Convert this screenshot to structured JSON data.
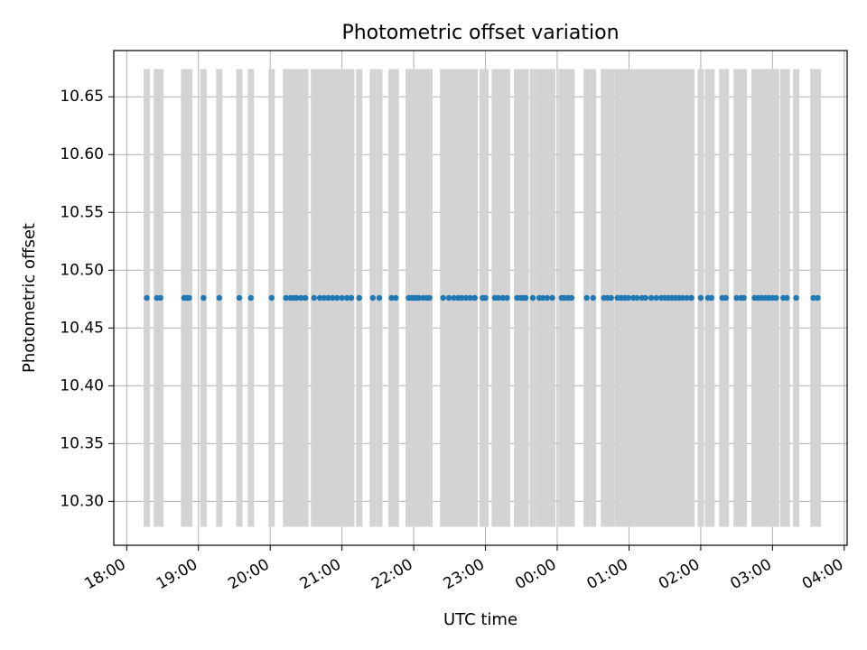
{
  "chart_data": {
    "type": "scatter",
    "title": "Photometric offset variation",
    "xlabel": "UTC time",
    "ylabel": "Photometric offset",
    "grid": true,
    "x_unit": "hours",
    "x_ticks": [
      {
        "t": 18,
        "label": "18:00"
      },
      {
        "t": 19,
        "label": "19:00"
      },
      {
        "t": 20,
        "label": "20:00"
      },
      {
        "t": 21,
        "label": "21:00"
      },
      {
        "t": 22,
        "label": "22:00"
      },
      {
        "t": 23,
        "label": "23:00"
      },
      {
        "t": 24,
        "label": "00:00"
      },
      {
        "t": 25,
        "label": "01:00"
      },
      {
        "t": 26,
        "label": "02:00"
      },
      {
        "t": 27,
        "label": "03:00"
      },
      {
        "t": 28,
        "label": "04:00"
      }
    ],
    "y_ticks": [
      {
        "v": 10.3,
        "label": "10.30"
      },
      {
        "v": 10.35,
        "label": "10.35"
      },
      {
        "v": 10.4,
        "label": "10.40"
      },
      {
        "v": 10.45,
        "label": "10.45"
      },
      {
        "v": 10.5,
        "label": "10.50"
      },
      {
        "v": 10.55,
        "label": "10.55"
      },
      {
        "v": 10.6,
        "label": "10.60"
      },
      {
        "v": 10.65,
        "label": "10.65"
      }
    ],
    "xlim": [
      17.82,
      28.04
    ],
    "ylim": [
      10.262,
      10.69
    ],
    "series": [
      {
        "value": 10.476,
        "error": 0.198,
        "times": [
          18.28,
          18.42,
          18.47,
          18.8,
          18.84,
          18.87,
          19.07,
          19.29,
          19.57,
          19.73,
          20.02,
          20.22,
          20.28,
          20.33,
          20.37,
          20.43,
          20.49,
          20.61,
          20.69,
          20.75,
          20.81,
          20.87,
          20.93,
          21.0,
          21.07,
          21.13,
          21.24,
          21.43,
          21.52,
          21.69,
          21.75,
          21.93,
          21.97,
          22.01,
          22.04,
          22.07,
          22.13,
          22.18,
          22.22,
          22.41,
          22.49,
          22.56,
          22.62,
          22.67,
          22.73,
          22.79,
          22.85,
          22.96,
          23.0,
          23.13,
          23.18,
          23.24,
          23.3,
          23.44,
          23.49,
          23.53,
          23.56,
          23.66,
          23.75,
          23.8,
          23.86,
          23.93,
          24.06,
          24.1,
          24.15,
          24.2,
          24.41,
          24.5,
          24.65,
          24.7,
          24.75,
          24.84,
          24.89,
          24.94,
          24.99,
          25.06,
          25.11,
          25.18,
          25.23,
          25.31,
          25.38,
          25.45,
          25.5,
          25.55,
          25.6,
          25.65,
          25.7,
          25.75,
          25.81,
          25.87,
          26.0,
          26.1,
          26.15,
          26.3,
          26.35,
          26.5,
          26.56,
          26.6,
          26.75,
          26.8,
          26.85,
          26.9,
          26.95,
          27.0,
          27.05,
          27.15,
          27.2,
          27.33,
          27.57,
          27.63
        ]
      }
    ],
    "colors": {
      "points": "#1f77b4",
      "error_bars": "#d3d3d3",
      "grid": "#b0b0b0",
      "axes": "#000000"
    }
  }
}
